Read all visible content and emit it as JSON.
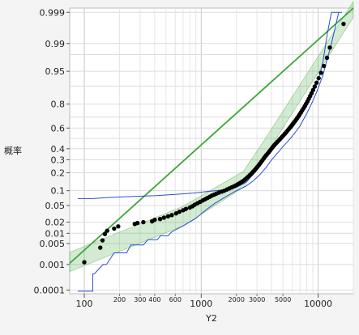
{
  "chart_data": {
    "type": "scatter",
    "xlabel": "Y2",
    "ylabel": "概率",
    "x_scale": "log",
    "y_scale": "normal-probability",
    "xlim": [
      75,
      20000
    ],
    "ylim": [
      7e-05,
      0.9993
    ],
    "x_major_ticks": [
      {
        "value": 100,
        "label": "100"
      },
      {
        "value": 1000,
        "label": "1000"
      },
      {
        "value": 10000,
        "label": "10000"
      }
    ],
    "x_minor_ticks": [
      {
        "value": 200,
        "label": "200"
      },
      {
        "value": 300,
        "label": "300"
      },
      {
        "value": 400,
        "label": "400"
      },
      {
        "value": 600,
        "label": "600"
      },
      {
        "value": 2000,
        "label": "2000"
      },
      {
        "value": 3000,
        "label": "3000"
      },
      {
        "value": 5000,
        "label": "5000"
      }
    ],
    "y_ticks": [
      {
        "value": 0.999,
        "label": "0.999"
      },
      {
        "value": 0.99,
        "label": "0.99"
      },
      {
        "value": 0.95,
        "label": "0.95"
      },
      {
        "value": 0.8,
        "label": "0.8"
      },
      {
        "value": 0.6,
        "label": "0.6"
      },
      {
        "value": 0.4,
        "label": "0.4"
      },
      {
        "value": 0.3,
        "label": "0.3"
      },
      {
        "value": 0.2,
        "label": "0.2"
      },
      {
        "value": 0.1,
        "label": "0.1"
      },
      {
        "value": 0.05,
        "label": "0.05"
      },
      {
        "value": 0.02,
        "label": "0.02"
      },
      {
        "value": 0.01,
        "label": "0.01"
      },
      {
        "value": 0.005,
        "label": "0.005"
      },
      {
        "value": 0.001,
        "label": "0.001"
      },
      {
        "value": 0.0001,
        "label": "0.0001"
      }
    ],
    "y_extra_gridlines": [
      0.98,
      0.9,
      0.7,
      0.5
    ],
    "grid": true,
    "fit_line": {
      "color": "#3aa635",
      "points": [
        [
          75,
          0.0011
        ],
        [
          20000,
          0.9993
        ]
      ]
    },
    "confidence_band": {
      "color": "#3aa635",
      "upper": [
        [
          75,
          0.0026
        ],
        [
          700,
          0.048
        ],
        [
          2300,
          0.21
        ],
        [
          3500,
          0.49
        ],
        [
          20000,
          0.9996
        ]
      ],
      "lower": [
        [
          75,
          0.00055
        ],
        [
          700,
          0.016
        ],
        [
          2300,
          0.115
        ],
        [
          3500,
          0.33
        ],
        [
          20000,
          0.9985
        ]
      ]
    },
    "bounds_color": "#2b4fcf",
    "upper_bound": [
      [
        88,
        0.07
      ],
      [
        118,
        0.07
      ],
      [
        118,
        0.07
      ],
      [
        165,
        0.074
      ],
      [
        250,
        0.077
      ],
      [
        400,
        0.08
      ],
      [
        600,
        0.085
      ],
      [
        850,
        0.09
      ],
      [
        1200,
        0.098
      ],
      [
        1600,
        0.104
      ],
      [
        2000,
        0.115
      ],
      [
        2400,
        0.14
      ],
      [
        2800,
        0.19
      ],
      [
        3200,
        0.25
      ],
      [
        3600,
        0.33
      ],
      [
        4000,
        0.4
      ],
      [
        4500,
        0.47
      ],
      [
        5000,
        0.52
      ],
      [
        5500,
        0.57
      ],
      [
        6000,
        0.6
      ],
      [
        7000,
        0.7
      ],
      [
        8000,
        0.8
      ],
      [
        9000,
        0.87
      ],
      [
        10000,
        0.92
      ],
      [
        11000,
        0.97
      ],
      [
        12000,
        0.995
      ],
      [
        13000,
        0.999
      ],
      [
        16000,
        0.999
      ]
    ],
    "lower_bound": [
      [
        88,
        9e-05
      ],
      [
        118,
        9e-05
      ],
      [
        118,
        0.00045
      ],
      [
        122,
        0.00045
      ],
      [
        145,
        0.001
      ],
      [
        155,
        0.001
      ],
      [
        180,
        0.0025
      ],
      [
        230,
        0.0025
      ],
      [
        250,
        0.0045
      ],
      [
        320,
        0.0045
      ],
      [
        350,
        0.0065
      ],
      [
        420,
        0.0065
      ],
      [
        450,
        0.0085
      ],
      [
        520,
        0.0085
      ],
      [
        560,
        0.011
      ],
      [
        700,
        0.016
      ],
      [
        900,
        0.025
      ],
      [
        1100,
        0.04
      ],
      [
        1300,
        0.055
      ],
      [
        1600,
        0.075
      ],
      [
        2000,
        0.1
      ],
      [
        2400,
        0.12
      ],
      [
        2800,
        0.15
      ],
      [
        3200,
        0.19
      ],
      [
        3600,
        0.24
      ],
      [
        4000,
        0.3
      ],
      [
        4500,
        0.36
      ],
      [
        5000,
        0.42
      ],
      [
        5500,
        0.47
      ],
      [
        6000,
        0.52
      ],
      [
        7000,
        0.62
      ],
      [
        8000,
        0.73
      ],
      [
        9000,
        0.82
      ],
      [
        10000,
        0.89
      ],
      [
        11000,
        0.94
      ],
      [
        12000,
        0.975
      ],
      [
        13000,
        0.99
      ],
      [
        15000,
        0.999
      ]
    ],
    "points": [
      [
        100,
        0.0012
      ],
      [
        137,
        0.0037
      ],
      [
        143,
        0.0062
      ],
      [
        150,
        0.0095
      ],
      [
        157,
        0.0118
      ],
      [
        180,
        0.0135
      ],
      [
        195,
        0.0155
      ],
      [
        270,
        0.018
      ],
      [
        285,
        0.019
      ],
      [
        320,
        0.02
      ],
      [
        380,
        0.021
      ],
      [
        400,
        0.023
      ],
      [
        445,
        0.024
      ],
      [
        480,
        0.026
      ],
      [
        520,
        0.028
      ],
      [
        560,
        0.03
      ],
      [
        610,
        0.033
      ],
      [
        650,
        0.036
      ],
      [
        700,
        0.039
      ],
      [
        740,
        0.042
      ],
      [
        800,
        0.045
      ],
      [
        840,
        0.048
      ],
      [
        880,
        0.052
      ],
      [
        930,
        0.056
      ],
      [
        980,
        0.06
      ],
      [
        1030,
        0.064
      ],
      [
        1080,
        0.068
      ],
      [
        1130,
        0.072
      ],
      [
        1180,
        0.076
      ],
      [
        1230,
        0.08
      ],
      [
        1290,
        0.084
      ],
      [
        1350,
        0.088
      ],
      [
        1420,
        0.092
      ],
      [
        1500,
        0.096
      ],
      [
        1580,
        0.1
      ],
      [
        1660,
        0.105
      ],
      [
        1740,
        0.11
      ],
      [
        1820,
        0.115
      ],
      [
        1900,
        0.12
      ],
      [
        1980,
        0.125
      ],
      [
        2060,
        0.131
      ],
      [
        2140,
        0.137
      ],
      [
        2220,
        0.143
      ],
      [
        2300,
        0.15
      ],
      [
        2380,
        0.158
      ],
      [
        2460,
        0.167
      ],
      [
        2540,
        0.176
      ],
      [
        2620,
        0.186
      ],
      [
        2700,
        0.196
      ],
      [
        2780,
        0.207
      ],
      [
        2860,
        0.218
      ],
      [
        2940,
        0.23
      ],
      [
        3020,
        0.242
      ],
      [
        3100,
        0.255
      ],
      [
        3180,
        0.268
      ],
      [
        3260,
        0.282
      ],
      [
        3340,
        0.296
      ],
      [
        3420,
        0.31
      ],
      [
        3500,
        0.325
      ],
      [
        3600,
        0.34
      ],
      [
        3700,
        0.355
      ],
      [
        3800,
        0.37
      ],
      [
        3900,
        0.386
      ],
      [
        4000,
        0.402
      ],
      [
        4100,
        0.418
      ],
      [
        4220,
        0.434
      ],
      [
        4350,
        0.45
      ],
      [
        4480,
        0.466
      ],
      [
        4620,
        0.482
      ],
      [
        4760,
        0.498
      ],
      [
        4900,
        0.514
      ],
      [
        5050,
        0.53
      ],
      [
        5200,
        0.546
      ],
      [
        5350,
        0.562
      ],
      [
        5500,
        0.578
      ],
      [
        5650,
        0.594
      ],
      [
        5800,
        0.61
      ],
      [
        5950,
        0.626
      ],
      [
        6100,
        0.642
      ],
      [
        6270,
        0.658
      ],
      [
        6440,
        0.674
      ],
      [
        6610,
        0.69
      ],
      [
        6780,
        0.706
      ],
      [
        6950,
        0.722
      ],
      [
        7130,
        0.738
      ],
      [
        7310,
        0.754
      ],
      [
        7500,
        0.77
      ],
      [
        7700,
        0.786
      ],
      [
        7900,
        0.802
      ],
      [
        8100,
        0.818
      ],
      [
        8320,
        0.834
      ],
      [
        8540,
        0.85
      ],
      [
        8780,
        0.866
      ],
      [
        9050,
        0.882
      ],
      [
        9350,
        0.898
      ],
      [
        9700,
        0.914
      ],
      [
        10100,
        0.93
      ],
      [
        10600,
        0.946
      ],
      [
        11200,
        0.962
      ],
      [
        11900,
        0.976
      ],
      [
        12600,
        0.987
      ],
      [
        16500,
        0.9975
      ]
    ]
  }
}
